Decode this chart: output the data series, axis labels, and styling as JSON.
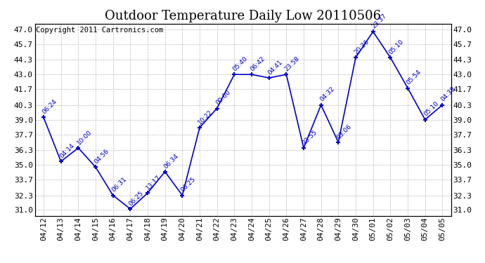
{
  "title": "Outdoor Temperature Daily Low 20110506",
  "copyright": "Copyright 2011 Cartronics.com",
  "x_labels": [
    "04/12",
    "04/13",
    "04/14",
    "04/15",
    "04/16",
    "04/17",
    "04/18",
    "04/19",
    "04/20",
    "04/21",
    "04/22",
    "04/23",
    "04/24",
    "04/25",
    "04/26",
    "04/27",
    "04/28",
    "04/29",
    "04/30",
    "05/01",
    "05/02",
    "05/03",
    "05/04",
    "05/05"
  ],
  "y_values": [
    39.2,
    35.3,
    36.5,
    34.8,
    32.3,
    31.1,
    32.5,
    34.4,
    32.3,
    38.3,
    40.0,
    43.0,
    43.0,
    42.7,
    43.0,
    36.5,
    40.3,
    37.0,
    44.5,
    46.8,
    44.5,
    41.8,
    39.0,
    40.3
  ],
  "annotation_data": [
    [
      0,
      39.2,
      "06:24"
    ],
    [
      1,
      35.3,
      "04:14"
    ],
    [
      2,
      36.5,
      "10:00"
    ],
    [
      3,
      34.8,
      "04:56"
    ],
    [
      4,
      32.3,
      "06:31"
    ],
    [
      5,
      31.1,
      "06:25"
    ],
    [
      6,
      32.5,
      "13:17"
    ],
    [
      7,
      34.4,
      "06:34"
    ],
    [
      8,
      32.3,
      "06:25"
    ],
    [
      9,
      38.3,
      "10:22"
    ],
    [
      10,
      40.0,
      "00:00"
    ],
    [
      11,
      43.0,
      "05:40"
    ],
    [
      12,
      43.0,
      "06:42"
    ],
    [
      13,
      42.7,
      "04:41"
    ],
    [
      14,
      43.0,
      "23:58"
    ],
    [
      15,
      36.5,
      "23:55"
    ],
    [
      16,
      40.3,
      "04:32"
    ],
    [
      17,
      37.0,
      "03:06"
    ],
    [
      18,
      44.5,
      "20:36"
    ],
    [
      19,
      46.8,
      "23:37"
    ],
    [
      20,
      44.5,
      "05:10"
    ],
    [
      21,
      41.8,
      "05:54"
    ],
    [
      22,
      39.0,
      "05:10"
    ],
    [
      23,
      40.3,
      "04:38"
    ]
  ],
  "y_ticks": [
    31.0,
    32.3,
    33.7,
    35.0,
    36.3,
    37.7,
    39.0,
    40.3,
    41.7,
    43.0,
    44.3,
    45.7,
    47.0
  ],
  "ylim": [
    30.5,
    47.5
  ],
  "line_color": "#0000cc",
  "bg_color": "#ffffff",
  "grid_color": "#bbbbbb",
  "title_fontsize": 13,
  "copyright_fontsize": 7.5,
  "annotation_fontsize": 6.5,
  "tick_fontsize": 8
}
